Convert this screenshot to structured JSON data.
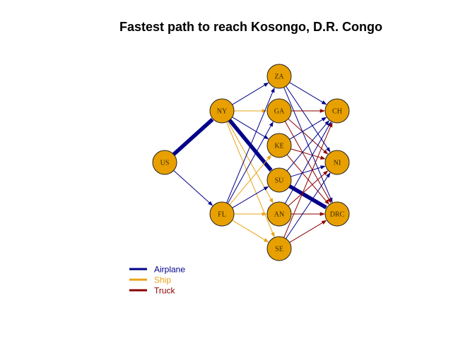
{
  "title": "Fastest path to reach Kosongo, D.R. Congo",
  "colors": {
    "Airplane": "#00008b",
    "Ship": "#e8a317",
    "Truck": "#8b0000",
    "node_fill": "#e8a000",
    "node_stroke": "#222222"
  },
  "nodes": [
    "US",
    "NY",
    "FL",
    "ZA",
    "GA",
    "KE",
    "SU",
    "AN",
    "SE",
    "CH",
    "NI",
    "DRC"
  ],
  "edges": [
    {
      "from": "US",
      "to": "NY",
      "mode": "Airplane",
      "highlight": true
    },
    {
      "from": "US",
      "to": "FL",
      "mode": "Airplane",
      "highlight": false
    },
    {
      "from": "NY",
      "to": "ZA",
      "mode": "Airplane",
      "highlight": false
    },
    {
      "from": "NY",
      "to": "GA",
      "mode": "Ship",
      "highlight": false
    },
    {
      "from": "NY",
      "to": "KE",
      "mode": "Airplane",
      "highlight": false
    },
    {
      "from": "NY",
      "to": "SU",
      "mode": "Airplane",
      "highlight": true
    },
    {
      "from": "NY",
      "to": "AN",
      "mode": "Ship",
      "highlight": false
    },
    {
      "from": "NY",
      "to": "SE",
      "mode": "Ship",
      "highlight": false
    },
    {
      "from": "FL",
      "to": "ZA",
      "mode": "Airplane",
      "highlight": false
    },
    {
      "from": "FL",
      "to": "GA",
      "mode": "Airplane",
      "highlight": false
    },
    {
      "from": "FL",
      "to": "KE",
      "mode": "Ship",
      "highlight": false
    },
    {
      "from": "FL",
      "to": "SU",
      "mode": "Airplane",
      "highlight": false
    },
    {
      "from": "FL",
      "to": "AN",
      "mode": "Ship",
      "highlight": false
    },
    {
      "from": "FL",
      "to": "SE",
      "mode": "Ship",
      "highlight": false
    },
    {
      "from": "ZA",
      "to": "CH",
      "mode": "Airplane",
      "highlight": false
    },
    {
      "from": "ZA",
      "to": "NI",
      "mode": "Airplane",
      "highlight": false
    },
    {
      "from": "ZA",
      "to": "DRC",
      "mode": "Airplane",
      "highlight": false
    },
    {
      "from": "GA",
      "to": "CH",
      "mode": "Truck",
      "highlight": false
    },
    {
      "from": "GA",
      "to": "NI",
      "mode": "Truck",
      "highlight": false
    },
    {
      "from": "GA",
      "to": "DRC",
      "mode": "Truck",
      "highlight": false
    },
    {
      "from": "KE",
      "to": "CH",
      "mode": "Airplane",
      "highlight": false
    },
    {
      "from": "KE",
      "to": "NI",
      "mode": "Truck",
      "highlight": false
    },
    {
      "from": "KE",
      "to": "DRC",
      "mode": "Truck",
      "highlight": false
    },
    {
      "from": "SU",
      "to": "CH",
      "mode": "Airplane",
      "highlight": false
    },
    {
      "from": "SU",
      "to": "NI",
      "mode": "Airplane",
      "highlight": false
    },
    {
      "from": "SU",
      "to": "DRC",
      "mode": "Airplane",
      "highlight": true
    },
    {
      "from": "AN",
      "to": "CH",
      "mode": "Airplane",
      "highlight": false
    },
    {
      "from": "AN",
      "to": "NI",
      "mode": "Truck",
      "highlight": false
    },
    {
      "from": "AN",
      "to": "DRC",
      "mode": "Truck",
      "highlight": false
    },
    {
      "from": "SE",
      "to": "CH",
      "mode": "Truck",
      "highlight": false
    },
    {
      "from": "SE",
      "to": "NI",
      "mode": "Airplane",
      "highlight": false
    },
    {
      "from": "SE",
      "to": "DRC",
      "mode": "Truck",
      "highlight": false
    }
  ],
  "legend": [
    {
      "label": "Airplane",
      "mode": "Airplane"
    },
    {
      "label": "Ship",
      "mode": "Ship"
    },
    {
      "label": "Truck",
      "mode": "Truck"
    }
  ]
}
